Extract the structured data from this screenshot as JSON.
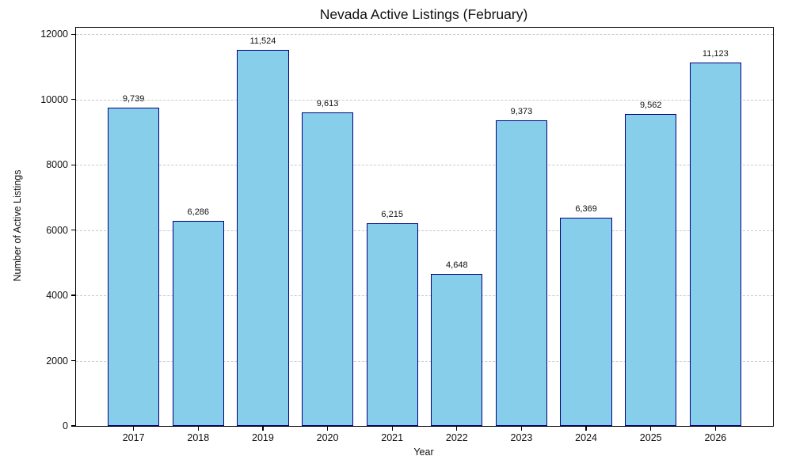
{
  "chart_data": {
    "type": "bar",
    "title": "Nevada Active Listings (February)",
    "xlabel": "Year",
    "ylabel": "Number of Active Listings",
    "categories": [
      "2017",
      "2018",
      "2019",
      "2020",
      "2021",
      "2022",
      "2023",
      "2024",
      "2025",
      "2026"
    ],
    "values": [
      9739,
      6286,
      11524,
      9613,
      6215,
      4648,
      9373,
      6369,
      9562,
      11123
    ],
    "value_labels": [
      "9,739",
      "6,286",
      "11,524",
      "9,613",
      "6,215",
      "4,648",
      "9,373",
      "6,369",
      "9,562",
      "11,123"
    ],
    "yticks": [
      0,
      2000,
      4000,
      6000,
      8000,
      10000,
      12000
    ],
    "ylim": [
      0,
      12200
    ],
    "bar_width_fraction": 0.8,
    "grid": "horizontal-dashed",
    "legend_position": "none",
    "colors": {
      "bar_fill": "#87CEEB",
      "bar_edge": "#000080",
      "grid": "#c9c9c9",
      "spine": "#000000",
      "text": "#111111",
      "background": "#ffffff"
    }
  }
}
